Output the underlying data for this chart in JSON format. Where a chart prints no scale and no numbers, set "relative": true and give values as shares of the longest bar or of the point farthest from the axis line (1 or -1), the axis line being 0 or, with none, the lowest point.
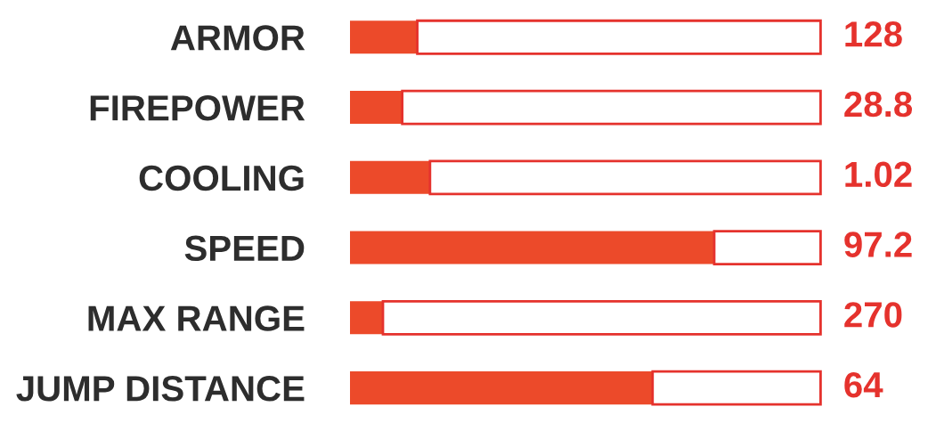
{
  "chart_data": {
    "type": "bar",
    "orientation": "horizontal",
    "relative": true,
    "stacked": true,
    "categories": [
      "ARMOR",
      "FIREPOWER",
      "COOLING",
      "SPEED",
      "MAX RANGE",
      "JUMP DISTANCE"
    ],
    "series": [
      {
        "color": "#ec4a2a",
        "values": [
          0.143,
          0.111,
          0.17,
          0.774,
          0.07,
          0.643
        ]
      },
      {
        "color": "#ffffff",
        "values": [
          0.857,
          0.889,
          0.83,
          0.226,
          0.93,
          0.357
        ]
      }
    ],
    "annotations": [
      "128",
      "28.8",
      "1.02",
      "97.2",
      "270",
      "64"
    ],
    "grid": false
  }
}
